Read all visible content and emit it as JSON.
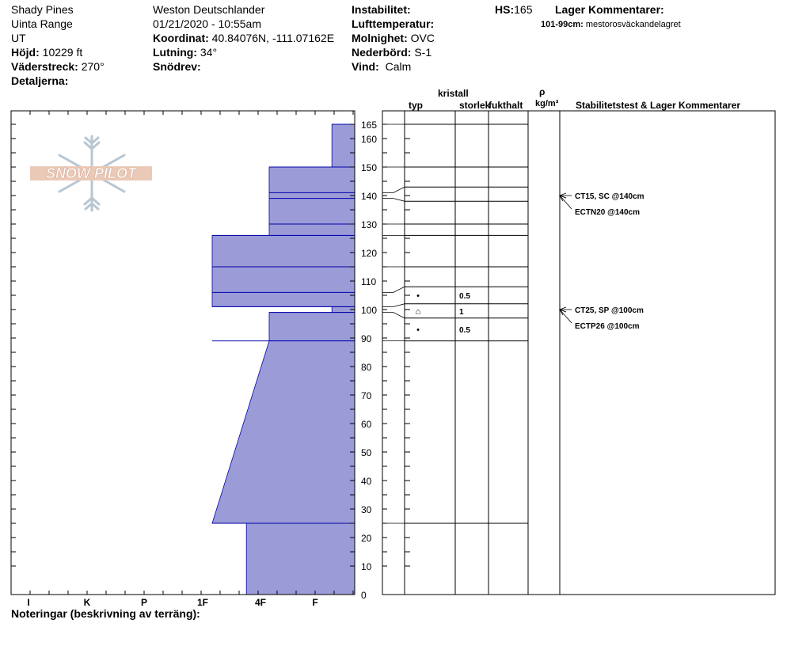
{
  "header": {
    "location": "Shady Pines",
    "range": "Uinta Range",
    "state": "UT",
    "elevation_label": "Höjd:",
    "elevation": "10229 ft",
    "aspect_label": "Väderstreck:",
    "aspect": "270°",
    "details_label": "Detaljerna:",
    "observer": "Weston Deutschlander",
    "datetime": "01/21/2020 - 10:55am",
    "coord_label": "Koordinat:",
    "coord": "40.84076N, -111.07162E",
    "slope_label": "Lutning:",
    "slope": "34°",
    "drift_label": "Snödrev:",
    "instability_label": "Instabilitet:",
    "airtemp_label": "Lufttemperatur:",
    "sky_label": "Molnighet:",
    "sky": "OVC",
    "precip_label": "Nederbörd:",
    "precip": "S-1",
    "wind_label": "Vind:",
    "wind": "Calm",
    "hs_label": "HS:",
    "hs": "165",
    "layer_comments_label": "Lager Kommentarer:",
    "layer_comment_range": "101-99cm:",
    "layer_comment_text": "mestorosväckandelagret"
  },
  "logo_text": "SNOW PILOT",
  "columns": {
    "crystal": "kristall",
    "type": "typ",
    "size": "storlek",
    "moisture": "fukthalt",
    "rho": "ρ",
    "density_unit": "kg/m³",
    "stability": "Stabilitetstest & Lager Kommentarer"
  },
  "footer": {
    "notes": "Noteringar (beskrivning av terräng):"
  },
  "colors": {
    "fill": "#9b9bd7",
    "layer_line": "#0000aa"
  },
  "chart_data": {
    "type": "snow-profile",
    "hs_cm": 165,
    "y_range": [
      0,
      168
    ],
    "y_ticks": [
      0,
      10,
      15,
      20,
      25,
      30,
      35,
      40,
      45,
      50,
      55,
      60,
      65,
      70,
      75,
      80,
      85,
      90,
      95,
      100,
      105,
      110,
      115,
      120,
      125,
      130,
      135,
      140,
      145,
      150,
      155,
      160,
      165
    ],
    "y_tick_labels": [
      "0",
      "10",
      "20",
      "30",
      "40",
      "50",
      "60",
      "70",
      "80",
      "90",
      "100",
      "110",
      "120",
      "130",
      "140",
      "150",
      "160",
      "165"
    ],
    "hardness_scale": [
      "I",
      "K",
      "P",
      "1F",
      "4F",
      "F"
    ],
    "hardness_profile": [
      {
        "top": 165,
        "bottom": 150,
        "hardness": 0.4
      },
      {
        "top": 150,
        "bottom": 126,
        "hardness": 1.5
      },
      {
        "top": 126,
        "bottom": 101,
        "hardness": 2.5
      },
      {
        "top": 101,
        "bottom": 99,
        "hardness": 0.4
      },
      {
        "top": 99,
        "bottom": 89,
        "hardness": 1.5
      },
      {
        "top": 89,
        "bottom": 25,
        "hardness_top": 1.5,
        "hardness_bottom": 2.5
      },
      {
        "top": 25,
        "bottom": 0,
        "hardness": 1.9
      }
    ],
    "layer_boundaries": [
      165,
      150,
      141,
      139,
      130,
      126,
      115,
      106,
      101,
      99,
      89,
      25
    ],
    "grain_rows": [
      {
        "top": 108,
        "bottom": 102,
        "type": "•",
        "size": "0.5"
      },
      {
        "top": 102,
        "bottom": 97,
        "type": "⌂",
        "size": "1"
      },
      {
        "top": 97,
        "bottom": 89,
        "type": "•",
        "size": "0.5"
      }
    ],
    "stability_tests": [
      {
        "depth": 140,
        "lines": [
          "CT15, SC @140cm",
          "ECTN20 @140cm"
        ]
      },
      {
        "depth": 100,
        "lines": [
          "CT25, SP @100cm",
          "ECTP26 @100cm"
        ]
      }
    ]
  }
}
